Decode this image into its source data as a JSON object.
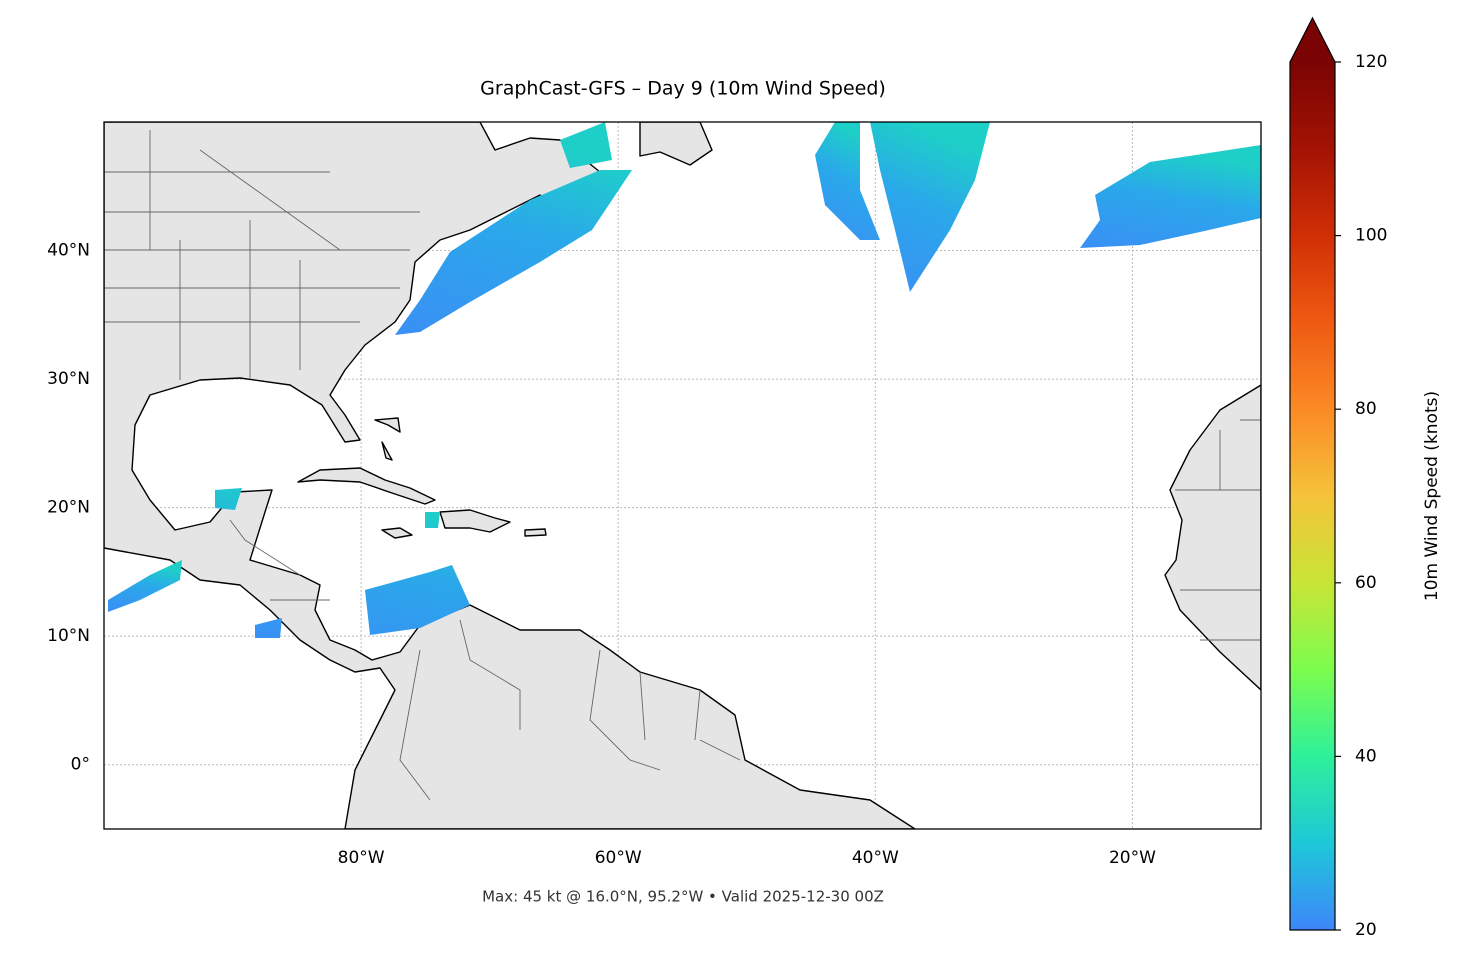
{
  "title": "GraphCast-GFS – Day 9 (10m Wind Speed)",
  "footer": "Max: 45 kt @ 16.0°N, 95.2°W • Valid 2025-12-30 00Z",
  "map": {
    "xlim": [
      -100,
      -10
    ],
    "ylim": [
      -5,
      50
    ],
    "xticks": [
      {
        "value": -80,
        "label": "80°W"
      },
      {
        "value": -60,
        "label": "60°W"
      },
      {
        "value": -40,
        "label": "40°W"
      },
      {
        "value": -20,
        "label": "20°W"
      }
    ],
    "yticks": [
      {
        "value": 0,
        "label": "0°"
      },
      {
        "value": 10,
        "label": "10°N"
      },
      {
        "value": 20,
        "label": "20°N"
      },
      {
        "value": 30,
        "label": "30°N"
      },
      {
        "value": 40,
        "label": "40°N"
      }
    ],
    "grid": true
  },
  "colorbar": {
    "label": "10m Wind Speed (knots)",
    "lim": [
      20,
      120
    ],
    "ticks": [
      20,
      40,
      60,
      80,
      100,
      120
    ],
    "extend": "max",
    "colors": [
      "#3e86f8",
      "#1ec8d8",
      "#2ef09a",
      "#7cfd4e",
      "#c8e536",
      "#f5c33a",
      "#fb8a25",
      "#ef5a12",
      "#d02f05",
      "#a31303",
      "#7a0403"
    ]
  }
}
